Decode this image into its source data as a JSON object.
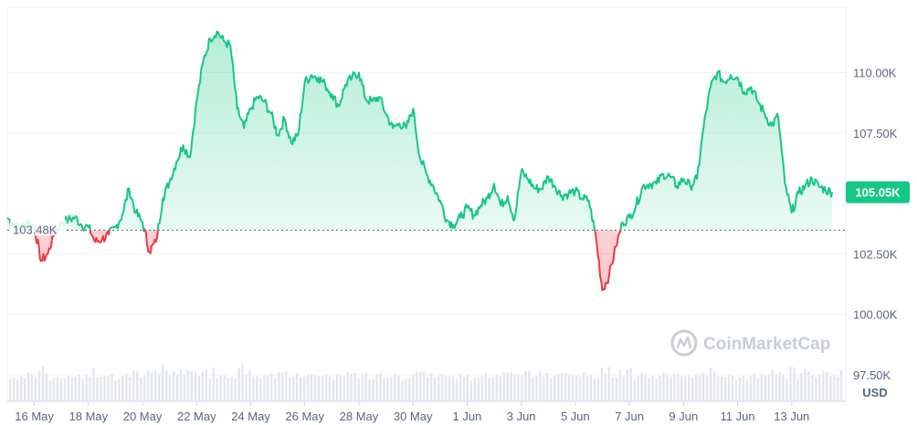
{
  "chart_data": {
    "type": "line",
    "x_ticks": [
      "16 May",
      "18 May",
      "20 May",
      "22 May",
      "24 May",
      "26 May",
      "28 May",
      "30 May",
      "1 Jun",
      "3 Jun",
      "5 Jun",
      "7 Jun",
      "9 Jun",
      "11 Jun",
      "13 Jun"
    ],
    "y_ticks": [
      "110.00K",
      "107.50K",
      "105.05K",
      "102.50K",
      "100.00K",
      "97.50K"
    ],
    "y_unit": "USD",
    "ylim": [
      96400,
      112700
    ],
    "baseline": {
      "value": 103480,
      "label": "103.48K"
    },
    "current": {
      "value": 105050,
      "label": "105.05K"
    },
    "watermark": "CoinMarketCap",
    "colors": {
      "up": "#16c784",
      "down": "#ea3943",
      "fill_up": "#16c784",
      "volume": "#e3e6eb",
      "grid": "#eff2f5"
    },
    "x_range": [
      "15 May",
      "15 Jun"
    ],
    "price_series": [
      [
        "15 May 00:00",
        104000
      ],
      [
        "15 May 06:00",
        103700
      ],
      [
        "15 May 12:00",
        103500
      ],
      [
        "15 May 18:00",
        103900
      ],
      [
        "16 May 00:00",
        103600
      ],
      [
        "16 May 06:00",
        102200
      ],
      [
        "16 May 12:00",
        102500
      ],
      [
        "16 May 18:00",
        103400
      ],
      [
        "17 May 00:00",
        103800
      ],
      [
        "17 May 06:00",
        103900
      ],
      [
        "17 May 12:00",
        104000
      ],
      [
        "17 May 18:00",
        103700
      ],
      [
        "18 May 00:00",
        103600
      ],
      [
        "18 May 06:00",
        103000
      ],
      [
        "18 May 12:00",
        103100
      ],
      [
        "18 May 18:00",
        103300
      ],
      [
        "19 May 00:00",
        103600
      ],
      [
        "19 May 06:00",
        104100
      ],
      [
        "19 May 12:00",
        105200
      ],
      [
        "19 May 18:00",
        104200
      ],
      [
        "20 May 00:00",
        103800
      ],
      [
        "20 May 06:00",
        102600
      ],
      [
        "20 May 12:00",
        103000
      ],
      [
        "20 May 18:00",
        104800
      ],
      [
        "21 May 00:00",
        105500
      ],
      [
        "21 May 06:00",
        106300
      ],
      [
        "21 May 12:00",
        107000
      ],
      [
        "21 May 18:00",
        106500
      ],
      [
        "22 May 00:00",
        108800
      ],
      [
        "22 May 06:00",
        110500
      ],
      [
        "22 May 12:00",
        111400
      ],
      [
        "22 May 18:00",
        111700
      ],
      [
        "23 May 00:00",
        111300
      ],
      [
        "23 May 06:00",
        111100
      ],
      [
        "23 May 12:00",
        108500
      ],
      [
        "23 May 18:00",
        107700
      ],
      [
        "24 May 00:00",
        108500
      ],
      [
        "24 May 06:00",
        109000
      ],
      [
        "24 May 12:00",
        108800
      ],
      [
        "24 May 18:00",
        108300
      ],
      [
        "25 May 00:00",
        107400
      ],
      [
        "25 May 06:00",
        108100
      ],
      [
        "25 May 12:00",
        107100
      ],
      [
        "25 May 18:00",
        107400
      ],
      [
        "26 May 00:00",
        109600
      ],
      [
        "26 May 06:00",
        109900
      ],
      [
        "26 May 12:00",
        109800
      ],
      [
        "26 May 18:00",
        109500
      ],
      [
        "27 May 00:00",
        109100
      ],
      [
        "27 May 06:00",
        108600
      ],
      [
        "27 May 12:00",
        109500
      ],
      [
        "27 May 18:00",
        109800
      ],
      [
        "28 May 00:00",
        110000
      ],
      [
        "28 May 06:00",
        108900
      ],
      [
        "28 May 12:00",
        108800
      ],
      [
        "28 May 18:00",
        109000
      ],
      [
        "29 May 00:00",
        108300
      ],
      [
        "29 May 06:00",
        107700
      ],
      [
        "29 May 12:00",
        107900
      ],
      [
        "29 May 18:00",
        107700
      ],
      [
        "30 May 00:00",
        108500
      ],
      [
        "30 May 06:00",
        106500
      ],
      [
        "30 May 12:00",
        105800
      ],
      [
        "30 May 18:00",
        105300
      ],
      [
        "31 May 00:00",
        104700
      ],
      [
        "31 May 06:00",
        103900
      ],
      [
        "31 May 12:00",
        103700
      ],
      [
        "31 May 18:00",
        104000
      ],
      [
        "1 Jun 00:00",
        104400
      ],
      [
        "1 Jun 06:00",
        104100
      ],
      [
        "1 Jun 12:00",
        104500
      ],
      [
        "1 Jun 18:00",
        104800
      ],
      [
        "2 Jun 00:00",
        105400
      ],
      [
        "2 Jun 06:00",
        104500
      ],
      [
        "2 Jun 12:00",
        104900
      ],
      [
        "2 Jun 18:00",
        103900
      ],
      [
        "3 Jun 00:00",
        105900
      ],
      [
        "3 Jun 06:00",
        105600
      ],
      [
        "3 Jun 12:00",
        105200
      ],
      [
        "3 Jun 18:00",
        105200
      ],
      [
        "4 Jun 00:00",
        105700
      ],
      [
        "4 Jun 06:00",
        105300
      ],
      [
        "4 Jun 12:00",
        104900
      ],
      [
        "4 Jun 18:00",
        105000
      ],
      [
        "5 Jun 00:00",
        105100
      ],
      [
        "5 Jun 06:00",
        104800
      ],
      [
        "5 Jun 12:00",
        104700
      ],
      [
        "5 Jun 18:00",
        103300
      ],
      [
        "6 Jun 00:00",
        101000
      ],
      [
        "6 Jun 06:00",
        101600
      ],
      [
        "6 Jun 12:00",
        102800
      ],
      [
        "6 Jun 18:00",
        103800
      ],
      [
        "7 Jun 00:00",
        104000
      ],
      [
        "7 Jun 06:00",
        104500
      ],
      [
        "7 Jun 12:00",
        105300
      ],
      [
        "7 Jun 18:00",
        105400
      ],
      [
        "8 Jun 00:00",
        105400
      ],
      [
        "8 Jun 06:00",
        105800
      ],
      [
        "8 Jun 12:00",
        105700
      ],
      [
        "8 Jun 18:00",
        105300
      ],
      [
        "9 Jun 00:00",
        105600
      ],
      [
        "9 Jun 06:00",
        105300
      ],
      [
        "9 Jun 12:00",
        105600
      ],
      [
        "9 Jun 18:00",
        107800
      ],
      [
        "10 Jun 00:00",
        109400
      ],
      [
        "10 Jun 06:00",
        110000
      ],
      [
        "10 Jun 12:00",
        109600
      ],
      [
        "10 Jun 18:00",
        109900
      ],
      [
        "11 Jun 00:00",
        109800
      ],
      [
        "11 Jun 06:00",
        109200
      ],
      [
        "11 Jun 12:00",
        109400
      ],
      [
        "11 Jun 18:00",
        108800
      ],
      [
        "12 Jun 00:00",
        108300
      ],
      [
        "12 Jun 06:00",
        107800
      ],
      [
        "12 Jun 12:00",
        108200
      ],
      [
        "12 Jun 18:00",
        105400
      ],
      [
        "13 Jun 00:00",
        104200
      ],
      [
        "13 Jun 06:00",
        105000
      ],
      [
        "13 Jun 12:00",
        105300
      ],
      [
        "13 Jun 18:00",
        105600
      ],
      [
        "14 Jun 00:00",
        105300
      ],
      [
        "14 Jun 06:00",
        105150
      ],
      [
        "14 Jun 12:00",
        105050
      ]
    ]
  }
}
